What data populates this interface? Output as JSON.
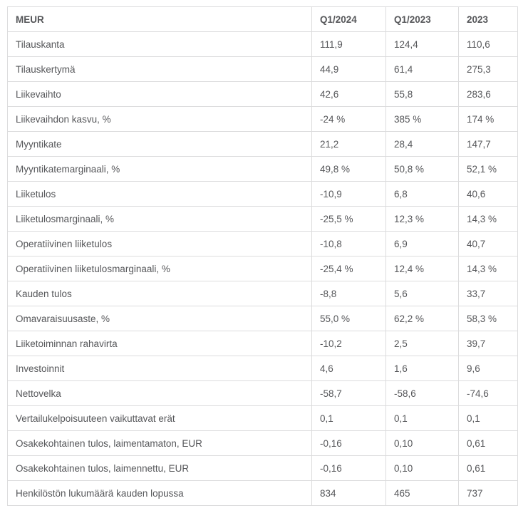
{
  "colors": {
    "text": "#56575a",
    "border": "#dcdcdd",
    "background": "#ffffff"
  },
  "chart_data": {
    "type": "table",
    "columns": [
      "MEUR",
      "Q1/2024",
      "Q1/2023",
      "2023"
    ],
    "rows": [
      [
        "Tilauskanta",
        "111,9",
        "124,4",
        "110,6"
      ],
      [
        "Tilauskertymä",
        "44,9",
        "61,4",
        "275,3"
      ],
      [
        "Liikevaihto",
        "42,6",
        "55,8",
        "283,6"
      ],
      [
        "Liikevaihdon kasvu, %",
        "-24 %",
        "385 %",
        "174 %"
      ],
      [
        "Myyntikate",
        "21,2",
        "28,4",
        "147,7"
      ],
      [
        "Myyntikatemarginaali, %",
        "49,8 %",
        "50,8 %",
        "52,1 %"
      ],
      [
        "Liiketulos",
        "-10,9",
        "6,8",
        "40,6"
      ],
      [
        "Liiketulosmarginaali, %",
        "-25,5 %",
        "12,3 %",
        "14,3 %"
      ],
      [
        "Operatiivinen liiketulos",
        "-10,8",
        "6,9",
        "40,7"
      ],
      [
        "Operatiivinen liiketulosmarginaali, %",
        "-25,4 %",
        "12,4 %",
        "14,3 %"
      ],
      [
        "Kauden tulos",
        "-8,8",
        "5,6",
        "33,7"
      ],
      [
        "Omavaraisuusaste, %",
        "55,0 %",
        "62,2 %",
        "58,3 %"
      ],
      [
        "Liiketoiminnan rahavirta",
        "-10,2",
        "2,5",
        "39,7"
      ],
      [
        "Investoinnit",
        "4,6",
        "1,6",
        "9,6"
      ],
      [
        "Nettovelka",
        "-58,7",
        "-58,6",
        "-74,6"
      ],
      [
        "Vertailukelpoisuuteen vaikuttavat erät",
        "0,1",
        "0,1",
        "0,1"
      ],
      [
        "Osakekohtainen tulos, laimentamaton, EUR",
        "-0,16",
        "0,10",
        "0,61"
      ],
      [
        "Osakekohtainen tulos, laimennettu, EUR",
        "-0,16",
        "0,10",
        "0,61"
      ],
      [
        "Henkilöstön lukumäärä kauden lopussa",
        "834",
        "465",
        "737"
      ]
    ]
  }
}
